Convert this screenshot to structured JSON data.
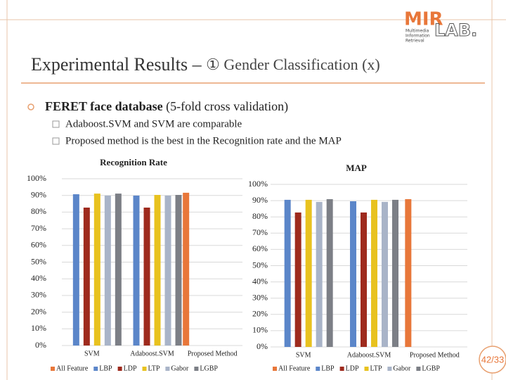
{
  "slide": {
    "logo": {
      "mark": "MIR",
      "lab": "LAB.",
      "lines": [
        "Multimedia",
        "Information",
        "Retrieval"
      ]
    },
    "title": "Experimental Results –",
    "title_rest": "① Gender Classification (x)",
    "bullet": {
      "bold": "FERET face database",
      "rest": "(5-fold cross validation)"
    },
    "subbullets": [
      "Adaboost.SVM and SVM are comparable",
      "Proposed method is the best in the Recognition rate and the MAP"
    ],
    "page_number": "42/33"
  },
  "chart_data": [
    {
      "type": "bar",
      "title": "Recognition Rate",
      "categories": [
        "SVM",
        "Adaboost.SVM",
        "Proposed Method"
      ],
      "series": [
        {
          "name": "All Feature",
          "color": "#e8773a",
          "values": [
            null,
            null,
            91.6
          ]
        },
        {
          "name": "LBP",
          "color": "#5b86c9",
          "values": [
            90.7,
            89.9,
            null
          ]
        },
        {
          "name": "LDP",
          "color": "#9e2a1d",
          "values": [
            82.7,
            82.7,
            null
          ]
        },
        {
          "name": "LTP",
          "color": "#e8c21f",
          "values": [
            91.1,
            90.3,
            null
          ]
        },
        {
          "name": "Gabor",
          "color": "#a9b4c8",
          "values": [
            89.9,
            89.9,
            null
          ]
        },
        {
          "name": "LGBP",
          "color": "#7c7f86",
          "values": [
            91.1,
            90.3,
            null
          ]
        }
      ],
      "ylim": [
        0,
        100
      ],
      "yticks": [
        {
          "value": 0,
          "label": "0%"
        },
        {
          "value": 10,
          "label": "10%"
        },
        {
          "value": 20,
          "label": "20%"
        },
        {
          "value": 30,
          "label": "30%"
        },
        {
          "value": 40,
          "label": "40%"
        },
        {
          "value": 50,
          "label": "50%"
        },
        {
          "value": 60,
          "label": "60%"
        },
        {
          "value": 70,
          "label": "70%"
        },
        {
          "value": 80,
          "label": "80%"
        },
        {
          "value": 90,
          "label": "90%"
        },
        {
          "value": 100,
          "label": "100%"
        }
      ],
      "grid": true,
      "legend": "bottom"
    },
    {
      "type": "bar",
      "title": "MAP",
      "categories": [
        "SVM",
        "Adaboost.SVM",
        "Proposed Method"
      ],
      "series": [
        {
          "name": "All Feature",
          "color": "#e8773a",
          "values": [
            null,
            null,
            90.9
          ]
        },
        {
          "name": "LBP",
          "color": "#5b86c9",
          "values": [
            90.5,
            89.6,
            null
          ]
        },
        {
          "name": "LDP",
          "color": "#9e2a1d",
          "values": [
            82.7,
            82.7,
            null
          ]
        },
        {
          "name": "LTP",
          "color": "#e8c21f",
          "values": [
            90.5,
            90.5,
            null
          ]
        },
        {
          "name": "Gabor",
          "color": "#a9b4c8",
          "values": [
            89.2,
            89.2,
            null
          ]
        },
        {
          "name": "LGBP",
          "color": "#7c7f86",
          "values": [
            90.9,
            90.5,
            null
          ]
        }
      ],
      "ylim": [
        0,
        100
      ],
      "yticks": [
        {
          "value": 0,
          "label": "0%"
        },
        {
          "value": 10,
          "label": "10%"
        },
        {
          "value": 20,
          "label": "20%"
        },
        {
          "value": 30,
          "label": "30%"
        },
        {
          "value": 40,
          "label": "40%"
        },
        {
          "value": 50,
          "label": "50%"
        },
        {
          "value": 60,
          "label": "60%"
        },
        {
          "value": 70,
          "label": "70%"
        },
        {
          "value": 80,
          "label": "80%"
        },
        {
          "value": 90,
          "label": "90%"
        },
        {
          "value": 100,
          "label": "100%"
        }
      ],
      "grid": true,
      "legend": "bottom"
    }
  ]
}
